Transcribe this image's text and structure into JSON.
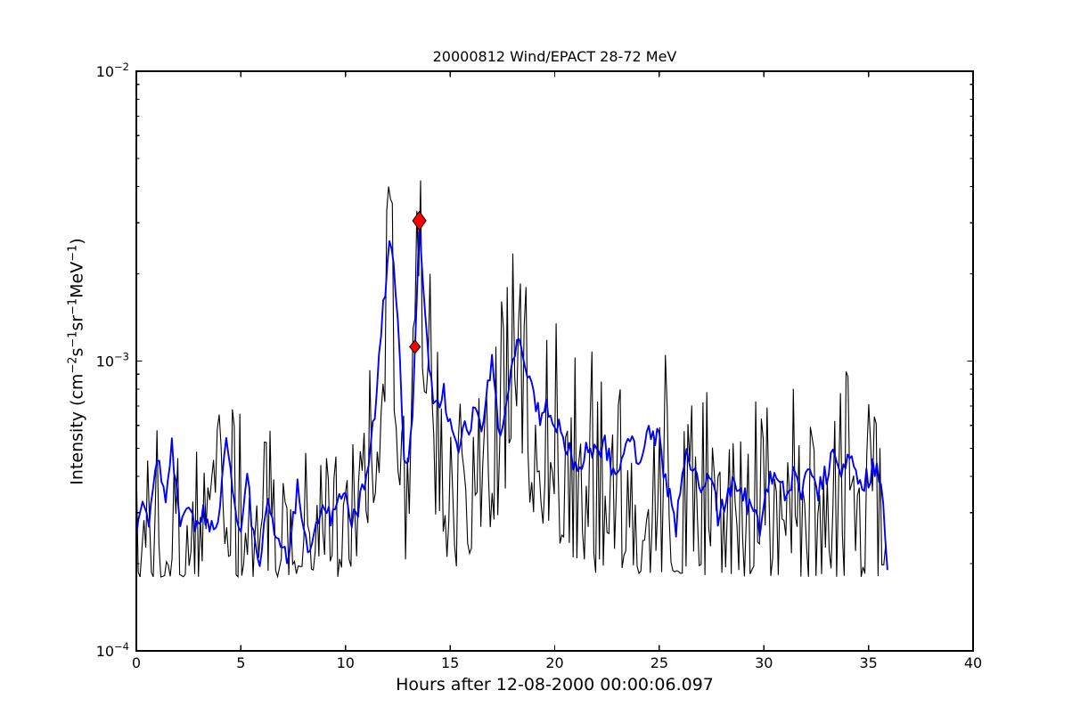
{
  "figure": {
    "title": "20000812 Wind/EPACT 28-72 MeV",
    "xlabel": "Hours after 12-08-2000 00:00:06.097",
    "ylabel_plain": "Intensity (cm-2 s-1 sr-1 MeV-1)",
    "ylabel_segments": [
      {
        "t": "Intensity (cm"
      },
      {
        "t": "−2",
        "sup": true
      },
      {
        "t": "s"
      },
      {
        "t": "−1",
        "sup": true
      },
      {
        "t": "sr"
      },
      {
        "t": "−1",
        "sup": true
      },
      {
        "t": "MeV"
      },
      {
        "t": "−1",
        "sup": true
      },
      {
        "t": ")"
      }
    ],
    "colors": {
      "raw": "#000000",
      "smoothed": "#0000ff",
      "marker_fill": "#ff0000",
      "marker_edge": "#000000",
      "axis": "#000000",
      "background": "#ffffff"
    }
  },
  "chart_data": {
    "type": "line",
    "title": "20000812 Wind/EPACT 28-72 MeV",
    "xlabel": "Hours after 12-08-2000 00:00:06.097",
    "ylabel": "Intensity (cm^-2 s^-1 sr^-1 MeV^-1)",
    "x_axis": {
      "scale": "linear",
      "lim": [
        0,
        40
      ],
      "ticks": [
        0,
        5,
        10,
        15,
        20,
        25,
        30,
        35,
        40
      ]
    },
    "y_axis": {
      "scale": "log",
      "lim": [
        0.0001,
        0.01
      ],
      "major_ticks_exp": [
        -4,
        -3,
        -2
      ],
      "minor_ticks": "2-9 per decade",
      "grid": false
    },
    "data_span_hours": [
      0,
      35.9
    ],
    "legend": "none",
    "series": [
      {
        "name": "black-noisy-intensity",
        "color": "#000000",
        "style": "high-cadence noisy trace; values read as lower/upper envelope [hours, min, max]",
        "envelope_keypoints": [
          [
            0,
            0.00018,
            0.00068
          ],
          [
            1,
            0.00018,
            0.00072
          ],
          [
            2,
            0.00018,
            0.00068
          ],
          [
            3,
            0.00018,
            0.0007
          ],
          [
            4.4,
            0.00018,
            0.00076
          ],
          [
            5,
            0.00018,
            0.00066
          ],
          [
            6,
            0.00018,
            0.00064
          ],
          [
            7,
            0.00018,
            0.00056
          ],
          [
            8,
            0.00018,
            0.0006
          ],
          [
            9,
            0.00018,
            0.00066
          ],
          [
            10,
            0.00018,
            0.00068
          ],
          [
            10.6,
            0.00019,
            0.00072
          ],
          [
            11.1,
            0.00026,
            0.00125
          ],
          [
            11.6,
            0.0004,
            0.0018
          ],
          [
            11.95,
            0.0007,
            0.0036
          ],
          [
            12.15,
            0.0009,
            0.004
          ],
          [
            12.35,
            0.0006,
            0.0026
          ],
          [
            12.6,
            0.0003,
            0.0012
          ],
          [
            12.9,
            0.00019,
            0.0007
          ],
          [
            13.15,
            0.0004,
            0.0016
          ],
          [
            13.45,
            0.0009,
            0.0034
          ],
          [
            13.6,
            0.0011,
            0.0042
          ],
          [
            13.75,
            0.0008,
            0.003
          ],
          [
            14.0,
            0.0004,
            0.0019
          ],
          [
            14.3,
            0.00026,
            0.0013
          ],
          [
            14.7,
            0.00022,
            0.00115
          ],
          [
            15.3,
            0.000185,
            0.001
          ],
          [
            16.0,
            0.00022,
            0.0012
          ],
          [
            16.7,
            0.00026,
            0.0015
          ],
          [
            17.3,
            0.00028,
            0.0017
          ],
          [
            17.9,
            0.00034,
            0.0021
          ],
          [
            18.1,
            0.00036,
            0.0024
          ],
          [
            18.45,
            0.00036,
            0.0019
          ],
          [
            19.0,
            0.0003,
            0.0016
          ],
          [
            19.6,
            0.00026,
            0.00135
          ],
          [
            20.3,
            0.00023,
            0.00135
          ],
          [
            21.0,
            0.0002,
            0.0011
          ],
          [
            22.0,
            0.000185,
            0.0011
          ],
          [
            23.0,
            0.000185,
            0.00105
          ],
          [
            24.0,
            0.000185,
            0.00105
          ],
          [
            25.0,
            0.000185,
            0.001
          ],
          [
            26.0,
            0.000185,
            0.0009
          ],
          [
            27.5,
            0.00018,
            0.00085
          ],
          [
            29.0,
            0.00018,
            0.00085
          ],
          [
            30.5,
            0.00018,
            0.0008
          ],
          [
            32.0,
            0.00018,
            0.00085
          ],
          [
            33.9,
            0.00018,
            0.00092
          ],
          [
            35.0,
            0.00018,
            0.00075
          ],
          [
            35.9,
            0.00018,
            0.0006
          ]
        ],
        "forced_spikes": [
          [
            11.93,
            0.0033
          ],
          [
            12.08,
            0.004
          ],
          [
            12.22,
            0.0035
          ],
          [
            13.42,
            0.0033
          ],
          [
            13.58,
            0.0042
          ],
          [
            14.05,
            0.002
          ],
          [
            17.7,
            0.0018
          ],
          [
            18.04,
            0.00235
          ],
          [
            18.35,
            0.00185
          ],
          [
            18.6,
            0.0018
          ],
          [
            20.1,
            0.00135
          ],
          [
            25.3,
            0.00105
          ],
          [
            33.9,
            0.00092
          ]
        ]
      },
      {
        "name": "blue-smoothed-intensity",
        "color": "#0000ff",
        "style": "running-average of black trace [hours, value]",
        "keypoints": [
          [
            0,
            0.00025
          ],
          [
            0.3,
            0.00031
          ],
          [
            0.6,
            0.00027
          ],
          [
            1.06,
            0.00046
          ],
          [
            1.4,
            0.00034
          ],
          [
            1.7,
            0.0005
          ],
          [
            2.07,
            0.000265
          ],
          [
            2.34,
            0.00033
          ],
          [
            2.6,
            0.00028
          ],
          [
            2.9,
            0.00026
          ],
          [
            3.1,
            0.0003
          ],
          [
            3.3,
            0.00029
          ],
          [
            3.7,
            0.00025
          ],
          [
            4.0,
            0.00032
          ],
          [
            4.34,
            0.00054
          ],
          [
            4.7,
            0.00032
          ],
          [
            5.0,
            0.00026
          ],
          [
            5.26,
            0.00044
          ],
          [
            5.6,
            0.00024
          ],
          [
            5.9,
            0.00021
          ],
          [
            6.3,
            0.00035
          ],
          [
            6.7,
            0.00023
          ],
          [
            7.0,
            0.00024
          ],
          [
            7.3,
            0.00021
          ],
          [
            7.7,
            0.00037
          ],
          [
            8.0,
            0.00026
          ],
          [
            8.3,
            0.00022
          ],
          [
            8.7,
            0.00029
          ],
          [
            9.0,
            0.00033
          ],
          [
            9.3,
            0.00028
          ],
          [
            9.6,
            0.00034
          ],
          [
            9.9,
            0.00038
          ],
          [
            10.3,
            0.00027
          ],
          [
            10.7,
            0.00033
          ],
          [
            11.0,
            0.00042
          ],
          [
            11.2,
            0.00053
          ],
          [
            11.4,
            0.00062
          ],
          [
            11.6,
            0.00097
          ],
          [
            11.8,
            0.00155
          ],
          [
            12.0,
            0.00215
          ],
          [
            12.1,
            0.0024
          ],
          [
            12.3,
            0.0023
          ],
          [
            12.5,
            0.00145
          ],
          [
            12.7,
            0.00064
          ],
          [
            12.85,
            0.0004
          ],
          [
            13.0,
            0.00046
          ],
          [
            13.2,
            0.0006
          ],
          [
            13.32,
            0.00112
          ],
          [
            13.45,
            0.0022
          ],
          [
            13.55,
            0.00305
          ],
          [
            13.7,
            0.002
          ],
          [
            13.85,
            0.00125
          ],
          [
            14.0,
            0.00095
          ],
          [
            14.2,
            0.00078
          ],
          [
            14.4,
            0.00069
          ],
          [
            14.7,
            0.00078
          ],
          [
            14.9,
            0.00064
          ],
          [
            15.3,
            0.00048
          ],
          [
            15.6,
            0.00062
          ],
          [
            15.9,
            0.00054
          ],
          [
            16.2,
            0.00072
          ],
          [
            16.5,
            0.0006
          ],
          [
            16.8,
            0.0008
          ],
          [
            17.0,
            0.00096
          ],
          [
            17.4,
            0.00056
          ],
          [
            17.7,
            0.00076
          ],
          [
            18.0,
            0.001
          ],
          [
            18.2,
            0.00125
          ],
          [
            18.6,
            0.00092
          ],
          [
            19.0,
            0.00076
          ],
          [
            19.3,
            0.00062
          ],
          [
            19.6,
            0.00068
          ],
          [
            20.0,
            0.00063
          ],
          [
            20.4,
            0.00056
          ],
          [
            20.8,
            0.00046
          ],
          [
            21.2,
            0.00044
          ],
          [
            21.6,
            0.0005
          ],
          [
            22.0,
            0.00046
          ],
          [
            22.4,
            0.00052
          ],
          [
            22.8,
            0.00042
          ],
          [
            23.2,
            0.00046
          ],
          [
            23.6,
            0.00054
          ],
          [
            24.0,
            0.00044
          ],
          [
            24.5,
            0.0006
          ],
          [
            25.0,
            0.00052
          ],
          [
            25.4,
            0.00036
          ],
          [
            25.8,
            0.00027
          ],
          [
            26.3,
            0.00047
          ],
          [
            26.7,
            0.0004
          ],
          [
            27.1,
            0.00036
          ],
          [
            27.5,
            0.00042
          ],
          [
            27.8,
            0.00029
          ],
          [
            28.2,
            0.00034
          ],
          [
            28.6,
            0.00039
          ],
          [
            29.0,
            0.00035
          ],
          [
            29.4,
            0.0003
          ],
          [
            29.8,
            0.00027
          ],
          [
            30.2,
            0.00037
          ],
          [
            30.6,
            0.00042
          ],
          [
            31.0,
            0.00036
          ],
          [
            31.4,
            0.0004
          ],
          [
            31.8,
            0.00033
          ],
          [
            32.2,
            0.00044
          ],
          [
            32.6,
            0.00036
          ],
          [
            33.0,
            0.00041
          ],
          [
            33.4,
            0.00048
          ],
          [
            33.8,
            0.00042
          ],
          [
            34.2,
            0.00049
          ],
          [
            34.6,
            0.00036
          ],
          [
            35.0,
            0.0004
          ],
          [
            35.4,
            0.00044
          ],
          [
            35.7,
            0.00032
          ],
          [
            35.9,
            0.00019
          ]
        ]
      }
    ],
    "markers": [
      {
        "name": "marker-1",
        "x": 13.32,
        "y": 0.00112,
        "shape": "diamond",
        "color": "#ff0000",
        "size": "small"
      },
      {
        "name": "marker-2",
        "x": 13.53,
        "y": 0.00305,
        "shape": "diamond",
        "color": "#ff0000",
        "size": "large"
      }
    ]
  },
  "render": {
    "seed": 20000812,
    "black_dt": 0.09,
    "black_shape": 2.0,
    "blue_dt": 0.1,
    "blue_jitter": 0.08
  }
}
